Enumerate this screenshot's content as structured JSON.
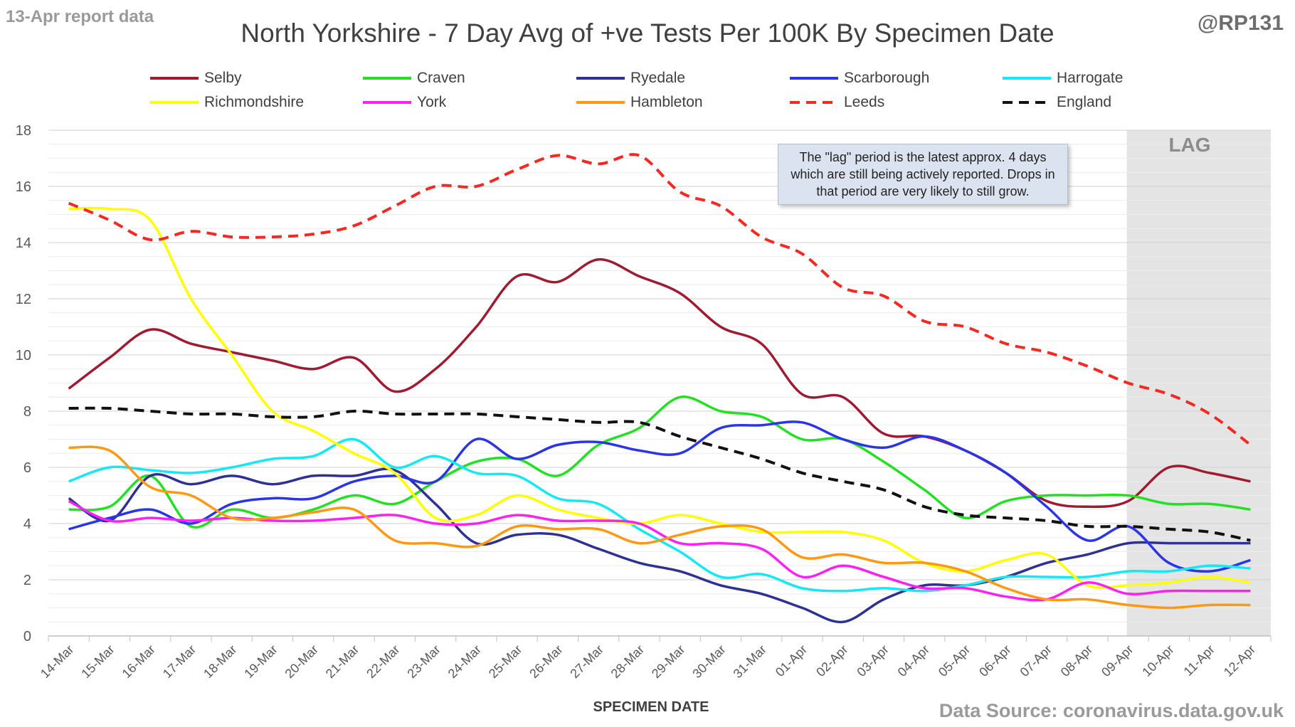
{
  "header": {
    "report_label": "13-Apr report data",
    "handle": "@RP131",
    "title": "North Yorkshire - 7 Day Avg of +ve Tests Per 100K By Specimen Date"
  },
  "footer": {
    "xlabel": "SPECIMEN DATE",
    "source": "Data Source: coronavirus.data.gov.uk"
  },
  "annotation": {
    "text": "The \"lag\" period is the latest approx. 4 days which are still being actively reported. Drops in that period are very likely to still grow.",
    "lag_label": "LAG"
  },
  "chart_data": {
    "type": "line",
    "title": "North Yorkshire - 7 Day Avg of +ve Tests Per 100K By Specimen Date",
    "xlabel": "SPECIMEN DATE",
    "ylabel": "",
    "ylim": [
      0,
      18
    ],
    "yticks": [
      0,
      2,
      4,
      6,
      8,
      10,
      12,
      14,
      16,
      18
    ],
    "grid": true,
    "legend_position": "top",
    "shaded_region": {
      "label": "LAG",
      "from": "09-Apr",
      "to": "12-Apr"
    },
    "categories": [
      "14-Mar",
      "15-Mar",
      "16-Mar",
      "17-Mar",
      "18-Mar",
      "19-Mar",
      "20-Mar",
      "21-Mar",
      "22-Mar",
      "23-Mar",
      "24-Mar",
      "25-Mar",
      "26-Mar",
      "27-Mar",
      "28-Mar",
      "29-Mar",
      "30-Mar",
      "31-Mar",
      "01-Apr",
      "02-Apr",
      "03-Apr",
      "04-Apr",
      "05-Apr",
      "06-Apr",
      "07-Apr",
      "08-Apr",
      "09-Apr",
      "10-Apr",
      "11-Apr",
      "12-Apr"
    ],
    "series": [
      {
        "name": "Selby",
        "color": "#9e1b32",
        "dash": false,
        "values": [
          8.8,
          9.9,
          10.9,
          10.4,
          10.1,
          9.8,
          9.5,
          9.9,
          8.7,
          9.5,
          11.0,
          12.8,
          12.6,
          13.4,
          12.8,
          12.2,
          11.0,
          10.4,
          8.6,
          8.5,
          7.2,
          7.1,
          6.6,
          5.8,
          4.8,
          4.6,
          4.8,
          6.0,
          5.8,
          5.5
        ]
      },
      {
        "name": "Craven",
        "color": "#22e022",
        "dash": false,
        "values": [
          4.5,
          4.6,
          5.7,
          3.9,
          4.5,
          4.2,
          4.5,
          5.0,
          4.7,
          5.5,
          6.2,
          6.3,
          5.7,
          6.8,
          7.4,
          8.5,
          8.0,
          7.8,
          7.0,
          7.0,
          6.2,
          5.2,
          4.2,
          4.8,
          5.0,
          5.0,
          5.0,
          4.7,
          4.7,
          4.5
        ]
      },
      {
        "name": "Ryedale",
        "color": "#2e3192",
        "dash": false,
        "values": [
          4.9,
          4.1,
          5.7,
          5.4,
          5.7,
          5.4,
          5.7,
          5.7,
          5.9,
          4.7,
          3.3,
          3.6,
          3.6,
          3.1,
          2.6,
          2.3,
          1.8,
          1.5,
          1.0,
          0.5,
          1.3,
          1.8,
          1.8,
          2.1,
          2.6,
          2.9,
          3.3,
          3.3,
          3.3,
          3.3
        ]
      },
      {
        "name": "Scarborough",
        "color": "#2b35e8",
        "dash": false,
        "values": [
          3.8,
          4.2,
          4.5,
          4.0,
          4.7,
          4.9,
          4.9,
          5.5,
          5.7,
          5.5,
          7.0,
          6.3,
          6.8,
          6.9,
          6.6,
          6.5,
          7.4,
          7.5,
          7.6,
          7.0,
          6.7,
          7.1,
          6.6,
          5.8,
          4.6,
          3.4,
          3.9,
          2.6,
          2.3,
          2.7
        ]
      },
      {
        "name": "Harrogate",
        "color": "#15e8f2",
        "dash": false,
        "values": [
          5.5,
          6.0,
          5.9,
          5.8,
          6.0,
          6.3,
          6.4,
          7.0,
          6.0,
          6.4,
          5.8,
          5.7,
          4.9,
          4.7,
          3.8,
          3.0,
          2.1,
          2.2,
          1.7,
          1.6,
          1.7,
          1.6,
          1.8,
          2.1,
          2.1,
          2.1,
          2.3,
          2.3,
          2.5,
          2.4
        ]
      },
      {
        "name": "Richmondshire",
        "color": "#ffff00",
        "dash": false,
        "values": [
          15.2,
          15.2,
          14.8,
          12.0,
          10.0,
          8.0,
          7.3,
          6.5,
          5.8,
          4.2,
          4.3,
          5.0,
          4.5,
          4.2,
          4.0,
          4.3,
          4.0,
          3.7,
          3.7,
          3.7,
          3.4,
          2.6,
          2.3,
          2.7,
          2.9,
          1.8,
          1.8,
          1.9,
          2.1,
          1.9
        ]
      },
      {
        "name": "York",
        "color": "#ff21f3",
        "dash": false,
        "values": [
          4.8,
          4.1,
          4.2,
          4.1,
          4.2,
          4.1,
          4.1,
          4.2,
          4.3,
          4.0,
          4.0,
          4.3,
          4.1,
          4.1,
          4.0,
          3.3,
          3.3,
          3.1,
          2.1,
          2.5,
          2.1,
          1.7,
          1.7,
          1.4,
          1.3,
          1.9,
          1.5,
          1.6,
          1.6,
          1.6
        ]
      },
      {
        "name": "Hambleton",
        "color": "#ff9914",
        "dash": false,
        "values": [
          6.7,
          6.6,
          5.3,
          5.0,
          4.2,
          4.2,
          4.4,
          4.5,
          3.4,
          3.3,
          3.2,
          3.9,
          3.8,
          3.8,
          3.3,
          3.6,
          3.9,
          3.8,
          2.8,
          2.9,
          2.6,
          2.6,
          2.3,
          1.7,
          1.3,
          1.3,
          1.1,
          1.0,
          1.1,
          1.1
        ]
      },
      {
        "name": "Leeds",
        "color": "#f22a22",
        "dash": true,
        "values": [
          15.4,
          14.8,
          14.1,
          14.4,
          14.2,
          14.2,
          14.3,
          14.6,
          15.3,
          16.0,
          16.0,
          16.6,
          17.1,
          16.8,
          17.1,
          15.8,
          15.3,
          14.2,
          13.6,
          12.4,
          12.1,
          11.2,
          11.0,
          10.4,
          10.1,
          9.6,
          9.0,
          8.6,
          7.9,
          6.8
        ]
      },
      {
        "name": "England",
        "color": "#111111",
        "dash": true,
        "values": [
          8.1,
          8.1,
          8.0,
          7.9,
          7.9,
          7.8,
          7.8,
          8.0,
          7.9,
          7.9,
          7.9,
          7.8,
          7.7,
          7.6,
          7.6,
          7.1,
          6.7,
          6.3,
          5.8,
          5.5,
          5.2,
          4.6,
          4.3,
          4.2,
          4.1,
          3.9,
          3.9,
          3.8,
          3.7,
          3.4
        ]
      }
    ]
  }
}
